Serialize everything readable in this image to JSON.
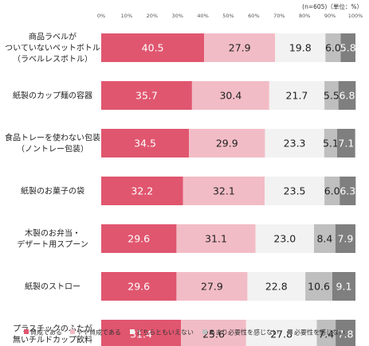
{
  "chart_data": {
    "type": "bar",
    "orientation": "horizontal",
    "stacked": true,
    "note": "(n=605)（単位：%）",
    "xlim": [
      0,
      100
    ],
    "x_ticks": [
      "0%",
      "10%",
      "20%",
      "30%",
      "40%",
      "50%",
      "60%",
      "70%",
      "80%",
      "90%",
      "100%"
    ],
    "categories": [
      [
        "商品ラベルが",
        "ついていないペットボトル",
        "（ラベルレスボトル）"
      ],
      [
        "紙製のカップ麺の容器"
      ],
      [
        "食品トレーを使わない包装",
        "（ノントレー包装）"
      ],
      [
        "紙製のお菓子の袋"
      ],
      [
        "木製のお弁当・",
        "デザート用スプーン"
      ],
      [
        "紙製のストロー"
      ],
      [
        "プラスチックのふたが",
        "無いチルドカップ飲料"
      ]
    ],
    "series": [
      {
        "name": "賛成である",
        "color": "#e0566f",
        "text_color": "#ffffff",
        "values": [
          40.5,
          35.7,
          34.5,
          32.2,
          29.6,
          29.6,
          31.4
        ]
      },
      {
        "name": "やや賛成である",
        "color": "#f2bcc6",
        "text_color": "#222222",
        "values": [
          27.9,
          30.4,
          29.9,
          32.1,
          31.1,
          27.9,
          25.6
        ]
      },
      {
        "name": "どちらともいえない",
        "color": "#f2f2f2",
        "text_color": "#222222",
        "values": [
          19.8,
          21.7,
          23.3,
          23.5,
          23.0,
          22.8,
          27.8
        ]
      },
      {
        "name": "あまり必要性を感じない",
        "color": "#bfbfbf",
        "text_color": "#222222",
        "values": [
          6.0,
          5.5,
          5.1,
          6.0,
          8.4,
          10.6,
          7.4
        ]
      },
      {
        "name": "必要性を感じない",
        "color": "#7f7f7f",
        "text_color": "#ffffff",
        "values": [
          5.8,
          6.8,
          7.1,
          6.3,
          7.9,
          9.1,
          7.8
        ]
      }
    ],
    "legend_position": "bottom",
    "grid": false
  }
}
